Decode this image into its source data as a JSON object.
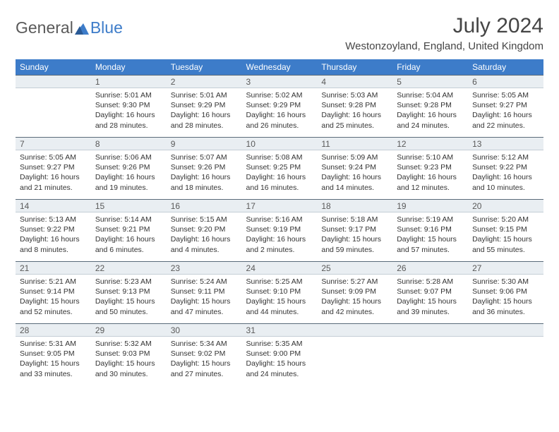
{
  "logo": {
    "text1": "General",
    "text2": "Blue"
  },
  "title": "July 2024",
  "location": "Westonzoyland, England, United Kingdom",
  "colors": {
    "header_bg": "#3d7cc9",
    "header_text": "#ffffff",
    "daynum_bg": "#e9eef2",
    "daynum_border_top": "#5a6b7a",
    "body_text": "#333333",
    "title_text": "#454545"
  },
  "dayHeaders": [
    "Sunday",
    "Monday",
    "Tuesday",
    "Wednesday",
    "Thursday",
    "Friday",
    "Saturday"
  ],
  "weeks": [
    {
      "nums": [
        "",
        "1",
        "2",
        "3",
        "4",
        "5",
        "6"
      ],
      "cells": [
        {
          "sunrise": "",
          "sunset": "",
          "daylight": ""
        },
        {
          "sunrise": "Sunrise: 5:01 AM",
          "sunset": "Sunset: 9:30 PM",
          "daylight": "Daylight: 16 hours and 28 minutes."
        },
        {
          "sunrise": "Sunrise: 5:01 AM",
          "sunset": "Sunset: 9:29 PM",
          "daylight": "Daylight: 16 hours and 28 minutes."
        },
        {
          "sunrise": "Sunrise: 5:02 AM",
          "sunset": "Sunset: 9:29 PM",
          "daylight": "Daylight: 16 hours and 26 minutes."
        },
        {
          "sunrise": "Sunrise: 5:03 AM",
          "sunset": "Sunset: 9:28 PM",
          "daylight": "Daylight: 16 hours and 25 minutes."
        },
        {
          "sunrise": "Sunrise: 5:04 AM",
          "sunset": "Sunset: 9:28 PM",
          "daylight": "Daylight: 16 hours and 24 minutes."
        },
        {
          "sunrise": "Sunrise: 5:05 AM",
          "sunset": "Sunset: 9:27 PM",
          "daylight": "Daylight: 16 hours and 22 minutes."
        }
      ]
    },
    {
      "nums": [
        "7",
        "8",
        "9",
        "10",
        "11",
        "12",
        "13"
      ],
      "cells": [
        {
          "sunrise": "Sunrise: 5:05 AM",
          "sunset": "Sunset: 9:27 PM",
          "daylight": "Daylight: 16 hours and 21 minutes."
        },
        {
          "sunrise": "Sunrise: 5:06 AM",
          "sunset": "Sunset: 9:26 PM",
          "daylight": "Daylight: 16 hours and 19 minutes."
        },
        {
          "sunrise": "Sunrise: 5:07 AM",
          "sunset": "Sunset: 9:26 PM",
          "daylight": "Daylight: 16 hours and 18 minutes."
        },
        {
          "sunrise": "Sunrise: 5:08 AM",
          "sunset": "Sunset: 9:25 PM",
          "daylight": "Daylight: 16 hours and 16 minutes."
        },
        {
          "sunrise": "Sunrise: 5:09 AM",
          "sunset": "Sunset: 9:24 PM",
          "daylight": "Daylight: 16 hours and 14 minutes."
        },
        {
          "sunrise": "Sunrise: 5:10 AM",
          "sunset": "Sunset: 9:23 PM",
          "daylight": "Daylight: 16 hours and 12 minutes."
        },
        {
          "sunrise": "Sunrise: 5:12 AM",
          "sunset": "Sunset: 9:22 PM",
          "daylight": "Daylight: 16 hours and 10 minutes."
        }
      ]
    },
    {
      "nums": [
        "14",
        "15",
        "16",
        "17",
        "18",
        "19",
        "20"
      ],
      "cells": [
        {
          "sunrise": "Sunrise: 5:13 AM",
          "sunset": "Sunset: 9:22 PM",
          "daylight": "Daylight: 16 hours and 8 minutes."
        },
        {
          "sunrise": "Sunrise: 5:14 AM",
          "sunset": "Sunset: 9:21 PM",
          "daylight": "Daylight: 16 hours and 6 minutes."
        },
        {
          "sunrise": "Sunrise: 5:15 AM",
          "sunset": "Sunset: 9:20 PM",
          "daylight": "Daylight: 16 hours and 4 minutes."
        },
        {
          "sunrise": "Sunrise: 5:16 AM",
          "sunset": "Sunset: 9:19 PM",
          "daylight": "Daylight: 16 hours and 2 minutes."
        },
        {
          "sunrise": "Sunrise: 5:18 AM",
          "sunset": "Sunset: 9:17 PM",
          "daylight": "Daylight: 15 hours and 59 minutes."
        },
        {
          "sunrise": "Sunrise: 5:19 AM",
          "sunset": "Sunset: 9:16 PM",
          "daylight": "Daylight: 15 hours and 57 minutes."
        },
        {
          "sunrise": "Sunrise: 5:20 AM",
          "sunset": "Sunset: 9:15 PM",
          "daylight": "Daylight: 15 hours and 55 minutes."
        }
      ]
    },
    {
      "nums": [
        "21",
        "22",
        "23",
        "24",
        "25",
        "26",
        "27"
      ],
      "cells": [
        {
          "sunrise": "Sunrise: 5:21 AM",
          "sunset": "Sunset: 9:14 PM",
          "daylight": "Daylight: 15 hours and 52 minutes."
        },
        {
          "sunrise": "Sunrise: 5:23 AM",
          "sunset": "Sunset: 9:13 PM",
          "daylight": "Daylight: 15 hours and 50 minutes."
        },
        {
          "sunrise": "Sunrise: 5:24 AM",
          "sunset": "Sunset: 9:11 PM",
          "daylight": "Daylight: 15 hours and 47 minutes."
        },
        {
          "sunrise": "Sunrise: 5:25 AM",
          "sunset": "Sunset: 9:10 PM",
          "daylight": "Daylight: 15 hours and 44 minutes."
        },
        {
          "sunrise": "Sunrise: 5:27 AM",
          "sunset": "Sunset: 9:09 PM",
          "daylight": "Daylight: 15 hours and 42 minutes."
        },
        {
          "sunrise": "Sunrise: 5:28 AM",
          "sunset": "Sunset: 9:07 PM",
          "daylight": "Daylight: 15 hours and 39 minutes."
        },
        {
          "sunrise": "Sunrise: 5:30 AM",
          "sunset": "Sunset: 9:06 PM",
          "daylight": "Daylight: 15 hours and 36 minutes."
        }
      ]
    },
    {
      "nums": [
        "28",
        "29",
        "30",
        "31",
        "",
        "",
        ""
      ],
      "cells": [
        {
          "sunrise": "Sunrise: 5:31 AM",
          "sunset": "Sunset: 9:05 PM",
          "daylight": "Daylight: 15 hours and 33 minutes."
        },
        {
          "sunrise": "Sunrise: 5:32 AM",
          "sunset": "Sunset: 9:03 PM",
          "daylight": "Daylight: 15 hours and 30 minutes."
        },
        {
          "sunrise": "Sunrise: 5:34 AM",
          "sunset": "Sunset: 9:02 PM",
          "daylight": "Daylight: 15 hours and 27 minutes."
        },
        {
          "sunrise": "Sunrise: 5:35 AM",
          "sunset": "Sunset: 9:00 PM",
          "daylight": "Daylight: 15 hours and 24 minutes."
        },
        {
          "sunrise": "",
          "sunset": "",
          "daylight": ""
        },
        {
          "sunrise": "",
          "sunset": "",
          "daylight": ""
        },
        {
          "sunrise": "",
          "sunset": "",
          "daylight": ""
        }
      ]
    }
  ]
}
